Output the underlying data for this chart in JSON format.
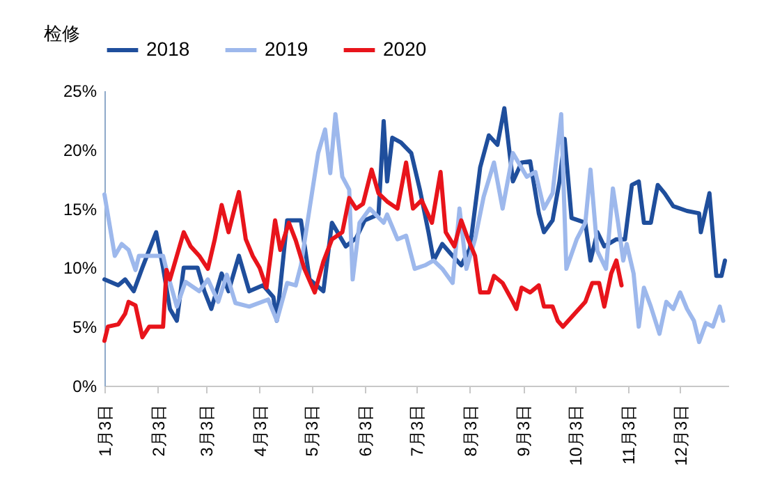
{
  "chart_data": {
    "type": "line",
    "ylabel": "检修",
    "legend": "top",
    "grid": false,
    "line_style": "solid",
    "marker": "none",
    "xlim": [
      "--01-03",
      "--12-31"
    ],
    "xticks": [
      {
        "value": "--01-03",
        "label": "1月3日"
      },
      {
        "value": "--02-03",
        "label": "2月3日"
      },
      {
        "value": "--03-03",
        "label": "3月3日"
      },
      {
        "value": "--04-03",
        "label": "4月3日"
      },
      {
        "value": "--05-03",
        "label": "5月3日"
      },
      {
        "value": "--06-03",
        "label": "6月3日"
      },
      {
        "value": "--07-03",
        "label": "7月3日"
      },
      {
        "value": "--08-03",
        "label": "8月3日"
      },
      {
        "value": "--09-03",
        "label": "9月3日"
      },
      {
        "value": "--10-03",
        "label": "10月3日"
      },
      {
        "value": "--11-03",
        "label": "11月3日"
      },
      {
        "value": "--12-03",
        "label": "12月3日"
      }
    ],
    "ylim": [
      0,
      25
    ],
    "yticks": [
      {
        "value": 0,
        "label": "0%"
      },
      {
        "value": 5,
        "label": "5%"
      },
      {
        "value": 10,
        "label": "10%"
      },
      {
        "value": 15,
        "label": "15%"
      },
      {
        "value": 20,
        "label": "20%"
      },
      {
        "value": 25,
        "label": "25%"
      }
    ],
    "series": [
      {
        "name": "2018",
        "color": "#1f4e9c",
        "x": [
          "--01-03",
          "--01-11",
          "--01-15",
          "--01-20",
          "--01-25",
          "--02-02",
          "--02-06",
          "--02-10",
          "--02-14",
          "--02-18",
          "--02-26",
          "--03-02",
          "--03-06",
          "--03-12",
          "--03-16",
          "--03-22",
          "--03-28",
          "--04-05",
          "--04-11",
          "--04-13",
          "--04-19",
          "--04-27",
          "--05-02",
          "--05-10",
          "--05-15",
          "--05-23",
          "--05-29",
          "--06-03",
          "--06-11",
          "--06-14",
          "--06-16",
          "--06-19",
          "--06-24",
          "--06-30",
          "--07-05",
          "--07-10",
          "--07-13",
          "--07-18",
          "--07-24",
          "--07-29",
          "--08-03",
          "--08-09",
          "--08-14",
          "--08-19",
          "--08-23",
          "--08-28",
          "--09-02",
          "--09-07",
          "--09-12",
          "--09-15",
          "--09-20",
          "--09-24",
          "--09-27",
          "--10-01",
          "--10-09",
          "--10-12",
          "--10-16",
          "--10-20",
          "--10-27",
          "--11-01",
          "--11-05",
          "--11-09",
          "--11-12",
          "--11-16",
          "--11-20",
          "--11-24",
          "--11-29",
          "--12-07",
          "--12-14",
          "--12-15",
          "--12-20",
          "--12-24",
          "--12-27",
          "--12-29"
        ],
        "values": [
          9,
          8.5,
          9,
          8,
          10,
          13,
          10,
          6.5,
          5.5,
          10,
          10,
          8,
          6.5,
          9.5,
          8,
          11,
          8,
          8.5,
          7.5,
          5.5,
          14,
          14,
          9,
          8,
          13.8,
          11.8,
          12.5,
          14,
          14.5,
          22.4,
          17.3,
          21,
          20.6,
          19.7,
          16.6,
          13,
          10.6,
          12,
          11,
          10.2,
          11.6,
          18.5,
          21.2,
          20.4,
          23.5,
          17.3,
          18.9,
          19,
          14.6,
          13,
          14,
          17.3,
          20.9,
          14.2,
          13.8,
          10.6,
          13,
          11.8,
          12.4,
          12.4,
          17,
          17.3,
          13.8,
          13.8,
          17,
          16.3,
          15.2,
          14.8,
          14.6,
          13,
          16.3,
          9.3,
          9.3,
          10.6
        ]
      },
      {
        "name": "2019",
        "color": "#9db8ec",
        "x": [
          "--01-03",
          "--01-09",
          "--01-13",
          "--01-17",
          "--01-21",
          "--01-23",
          "--02-06",
          "--02-08",
          "--02-14",
          "--02-19",
          "--02-27",
          "--03-04",
          "--03-10",
          "--03-15",
          "--03-20",
          "--03-28",
          "--04-08",
          "--04-13",
          "--04-19",
          "--04-24",
          "--04-27",
          "--05-02",
          "--05-07",
          "--05-11",
          "--05-14",
          "--05-17",
          "--05-21",
          "--05-25",
          "--05-27",
          "--05-31",
          "--06-06",
          "--06-14",
          "--06-16",
          "--06-22",
          "--06-27",
          "--07-02",
          "--07-08",
          "--07-13",
          "--07-18",
          "--07-24",
          "--07-28",
          "--08-01",
          "--08-06",
          "--08-11",
          "--08-17",
          "--08-22",
          "--08-28",
          "--09-05",
          "--09-10",
          "--09-15",
          "--09-20",
          "--09-25",
          "--09-28",
          "--10-04",
          "--10-09",
          "--10-12",
          "--10-16",
          "--10-21",
          "--10-25",
          "--10-28",
          "--10-31",
          "--11-02",
          "--11-06",
          "--11-09",
          "--11-12",
          "--11-16",
          "--11-21",
          "--11-25",
          "--11-29",
          "--12-03",
          "--12-07",
          "--12-11",
          "--12-14",
          "--12-18",
          "--12-22",
          "--12-26",
          "--12-28"
        ],
        "values": [
          16.2,
          11,
          12,
          11.5,
          9.8,
          11,
          11,
          9.8,
          6.7,
          8.8,
          8,
          9,
          7.1,
          9.4,
          7,
          6.7,
          7.3,
          5.5,
          8.7,
          8.5,
          10.2,
          15,
          19.7,
          21.7,
          18,
          23,
          17.7,
          16.6,
          9,
          13.8,
          15,
          13.8,
          14.5,
          12.4,
          12.7,
          9.9,
          10.2,
          10.6,
          9.9,
          8.7,
          15,
          9.9,
          12.4,
          16,
          18.9,
          15,
          19.7,
          17.7,
          18.1,
          15,
          16.3,
          23,
          9.9,
          12.4,
          13.8,
          18.3,
          11.4,
          9.9,
          16.7,
          13.8,
          10.6,
          12,
          9.5,
          5,
          8.3,
          6.7,
          4.4,
          7.1,
          6.5,
          7.9,
          6.5,
          5.5,
          3.7,
          5.3,
          5,
          6.7,
          5.5
        ]
      },
      {
        "name": "2020",
        "color": "#e8141b",
        "x": [
          "--01-03",
          "--01-05",
          "--01-11",
          "--01-15",
          "--01-17",
          "--01-21",
          "--01-25",
          "--01-29",
          "--02-06",
          "--02-08",
          "--02-10",
          "--02-18",
          "--02-22",
          "--02-27",
          "--03-04",
          "--03-08",
          "--03-12",
          "--03-16",
          "--03-20",
          "--03-22",
          "--03-26",
          "--03-30",
          "--04-03",
          "--04-07",
          "--04-12",
          "--04-15",
          "--04-20",
          "--04-24",
          "--04-29",
          "--05-05",
          "--05-10",
          "--05-15",
          "--05-21",
          "--05-25",
          "--05-29",
          "--06-02",
          "--06-07",
          "--06-11",
          "--06-16",
          "--06-22",
          "--06-27",
          "--07-01",
          "--07-06",
          "--07-12",
          "--07-17",
          "--07-20",
          "--07-25",
          "--07-29",
          "--08-02",
          "--08-06",
          "--08-09",
          "--08-14",
          "--08-17",
          "--08-22",
          "--08-28",
          "--08-30",
          "--09-02",
          "--09-07",
          "--09-12",
          "--09-15",
          "--09-20",
          "--09-23",
          "--09-26",
          "--10-04",
          "--10-09",
          "--10-13",
          "--10-17",
          "--10-20",
          "--10-24",
          "--10-27",
          "--10-30"
        ],
        "values": [
          3.8,
          5,
          5.2,
          6.1,
          7.1,
          6.8,
          4.1,
          5,
          5,
          9.8,
          9,
          13,
          11.8,
          11,
          9.9,
          12.4,
          15.3,
          13,
          15.3,
          16.4,
          12.4,
          11,
          10,
          8.3,
          14,
          11.5,
          13.8,
          12.3,
          9.9,
          7.9,
          10.5,
          12.4,
          13,
          15.9,
          15,
          15.4,
          18.3,
          16.3,
          15.6,
          15,
          18.9,
          15,
          15.7,
          13.8,
          18.1,
          13,
          11.8,
          14,
          12.4,
          11,
          7.9,
          7.9,
          9.3,
          8.7,
          7.1,
          6.5,
          8.3,
          7.9,
          8.5,
          6.7,
          6.7,
          5.5,
          5,
          6.3,
          7.1,
          8.7,
          8.7,
          6.7,
          9.5,
          10.6,
          8.5
        ]
      }
    ]
  }
}
